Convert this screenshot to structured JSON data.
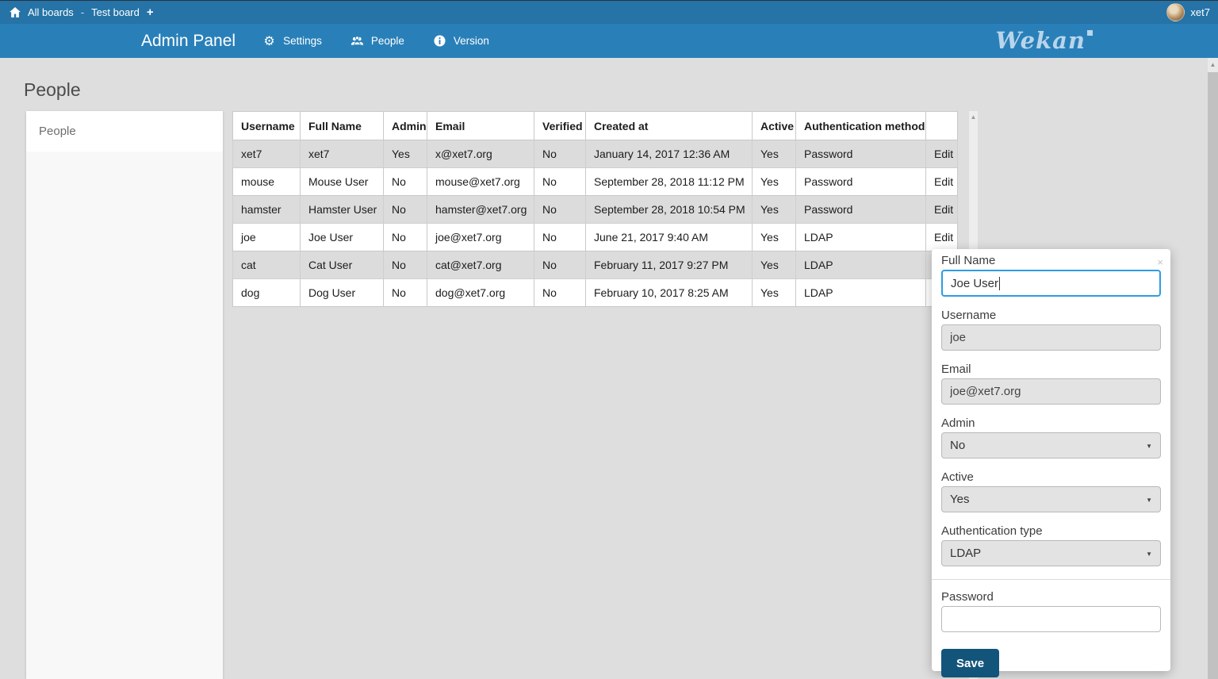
{
  "topbar": {
    "all_boards": "All boards",
    "separator": "-",
    "board_name": "Test board",
    "username": "xet7"
  },
  "header": {
    "title": "Admin Panel",
    "menu": {
      "settings": "Settings",
      "people": "People",
      "version": "Version"
    },
    "logo_text": "Wekan"
  },
  "page": {
    "heading": "People"
  },
  "sidebar": {
    "items": [
      {
        "label": "People"
      }
    ]
  },
  "table": {
    "columns": [
      {
        "key": "username",
        "label": "Username"
      },
      {
        "key": "full_name",
        "label": "Full Name"
      },
      {
        "key": "admin",
        "label": "Admin"
      },
      {
        "key": "email",
        "label": "Email"
      },
      {
        "key": "verified",
        "label": "Verified"
      },
      {
        "key": "created_at",
        "label": "Created at"
      },
      {
        "key": "active",
        "label": "Active"
      },
      {
        "key": "auth_method",
        "label": "Authentication method"
      },
      {
        "key": "action",
        "label": ""
      }
    ],
    "rows": [
      {
        "username": "xet7",
        "full_name": "xet7",
        "admin": "Yes",
        "email": "x@xet7.org",
        "verified": "No",
        "created_at": "January 14, 2017 12:36 AM",
        "active": "Yes",
        "auth_method": "Password",
        "action": "Edit"
      },
      {
        "username": "mouse",
        "full_name": "Mouse User",
        "admin": "No",
        "email": "mouse@xet7.org",
        "verified": "No",
        "created_at": "September 28, 2018 11:12 PM",
        "active": "Yes",
        "auth_method": "Password",
        "action": "Edit"
      },
      {
        "username": "hamster",
        "full_name": "Hamster User",
        "admin": "No",
        "email": "hamster@xet7.org",
        "verified": "No",
        "created_at": "September 28, 2018 10:54 PM",
        "active": "Yes",
        "auth_method": "Password",
        "action": "Edit"
      },
      {
        "username": "joe",
        "full_name": "Joe User",
        "admin": "No",
        "email": "joe@xet7.org",
        "verified": "No",
        "created_at": "June 21, 2017 9:40 AM",
        "active": "Yes",
        "auth_method": "LDAP",
        "action": "Edit"
      },
      {
        "username": "cat",
        "full_name": "Cat User",
        "admin": "No",
        "email": "cat@xet7.org",
        "verified": "No",
        "created_at": "February 11, 2017 9:27 PM",
        "active": "Yes",
        "auth_method": "LDAP",
        "action": "Edit"
      },
      {
        "username": "dog",
        "full_name": "Dog User",
        "admin": "No",
        "email": "dog@xet7.org",
        "verified": "No",
        "created_at": "February 10, 2017 8:25 AM",
        "active": "Yes",
        "auth_method": "LDAP",
        "action": "Edit"
      }
    ]
  },
  "popup": {
    "full_name": {
      "label": "Full Name",
      "value": "Joe User"
    },
    "username": {
      "label": "Username",
      "value": "joe"
    },
    "email": {
      "label": "Email",
      "value": "joe@xet7.org"
    },
    "admin": {
      "label": "Admin",
      "value": "No"
    },
    "active": {
      "label": "Active",
      "value": "Yes"
    },
    "auth_type": {
      "label": "Authentication type",
      "value": "LDAP"
    },
    "password": {
      "label": "Password",
      "value": ""
    },
    "save_label": "Save"
  },
  "icons": {
    "plus": "+",
    "gear": "⚙",
    "close": "×",
    "select_caret": "▼",
    "scroll_up": "▲"
  },
  "colors": {
    "topbar": "#2573a7",
    "header": "#2980b9",
    "page_bg": "#dedede",
    "row_alt": "#dcdcdc",
    "focus_border": "#2f9ce3",
    "save_button": "#13547a",
    "logo": "#b9d5ea"
  }
}
